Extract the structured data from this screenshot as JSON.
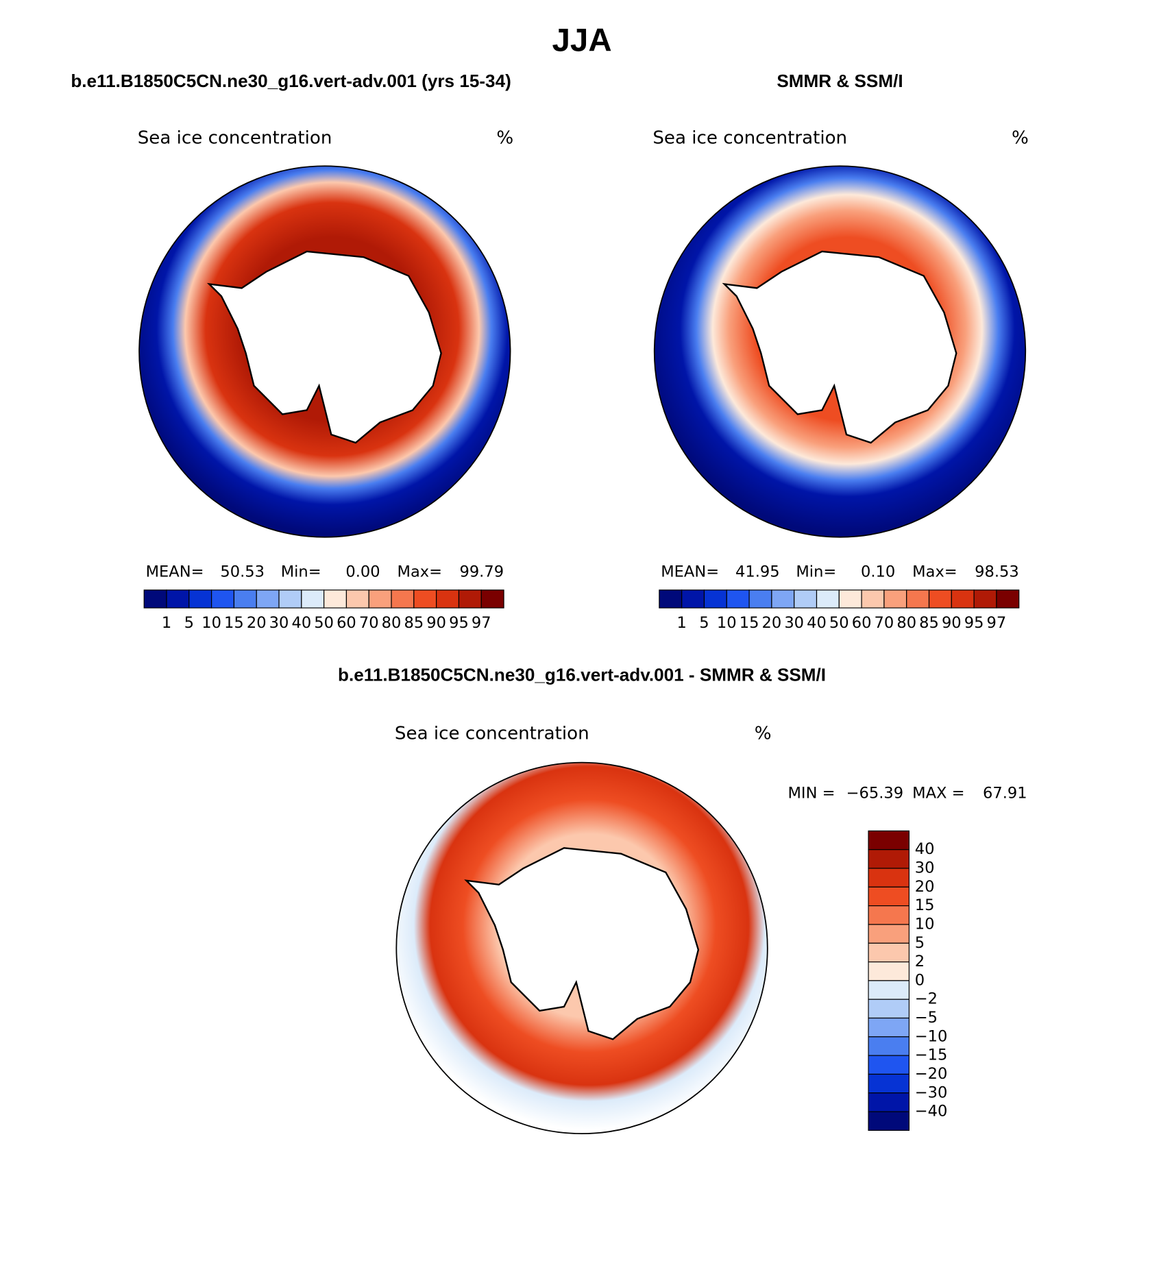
{
  "title": "JJA",
  "panels": [
    {
      "header": "b.e11.B1850C5CN.ne30_g16.vert-adv.001 (yrs 15-34)",
      "subtitle": "Sea ice concentration",
      "units": "%",
      "stats": [
        {
          "label": "MEAN=",
          "value": "50.53"
        },
        {
          "label": "Min=",
          "value": "0.00"
        },
        {
          "label": "Max=",
          "value": "99.79"
        }
      ]
    },
    {
      "header": "SMMR & SSM/I",
      "subtitle": "Sea ice concentration",
      "units": "%",
      "stats": [
        {
          "label": "MEAN=",
          "value": "41.95"
        },
        {
          "label": "Min=",
          "value": "0.10"
        },
        {
          "label": "Max=",
          "value": "98.53"
        }
      ]
    }
  ],
  "colorbar": {
    "levels": [
      "1",
      "5",
      "10",
      "15",
      "20",
      "30",
      "40",
      "50",
      "60",
      "70",
      "80",
      "85",
      "90",
      "95",
      "97"
    ],
    "colors": [
      "#00097a",
      "#0015a8",
      "#0633d4",
      "#1f55f0",
      "#4a7ef0",
      "#7ea6f5",
      "#b0ccf7",
      "#dcebfa",
      "#fde9da",
      "#fcc8ad",
      "#f9a07c",
      "#f5774e",
      "#ee4d22",
      "#d93310",
      "#b01a06",
      "#7a0000"
    ]
  },
  "difference": {
    "header": "b.e11.B1850C5CN.ne30_g16.vert-adv.001 - SMMR & SSM/I",
    "subtitle": "Sea ice concentration",
    "units": "%",
    "stats": [
      {
        "label": "MIN =",
        "value": "−65.39"
      },
      {
        "label": "MAX =",
        "value": "67.91"
      }
    ],
    "colorbar": {
      "levels": [
        "40",
        "30",
        "20",
        "15",
        "10",
        "5",
        "2",
        "0",
        "−2",
        "−5",
        "−10",
        "−15",
        "−20",
        "−30",
        "−40"
      ],
      "colors": [
        "#7a0000",
        "#b01a06",
        "#d93310",
        "#ee4d22",
        "#f5774e",
        "#f9a07c",
        "#fcc8ad",
        "#fde9da",
        "#dcebfa",
        "#b0ccf7",
        "#7ea6f5",
        "#4a7ef0",
        "#1f55f0",
        "#0633d4",
        "#0015a8",
        "#00097a"
      ]
    }
  }
}
